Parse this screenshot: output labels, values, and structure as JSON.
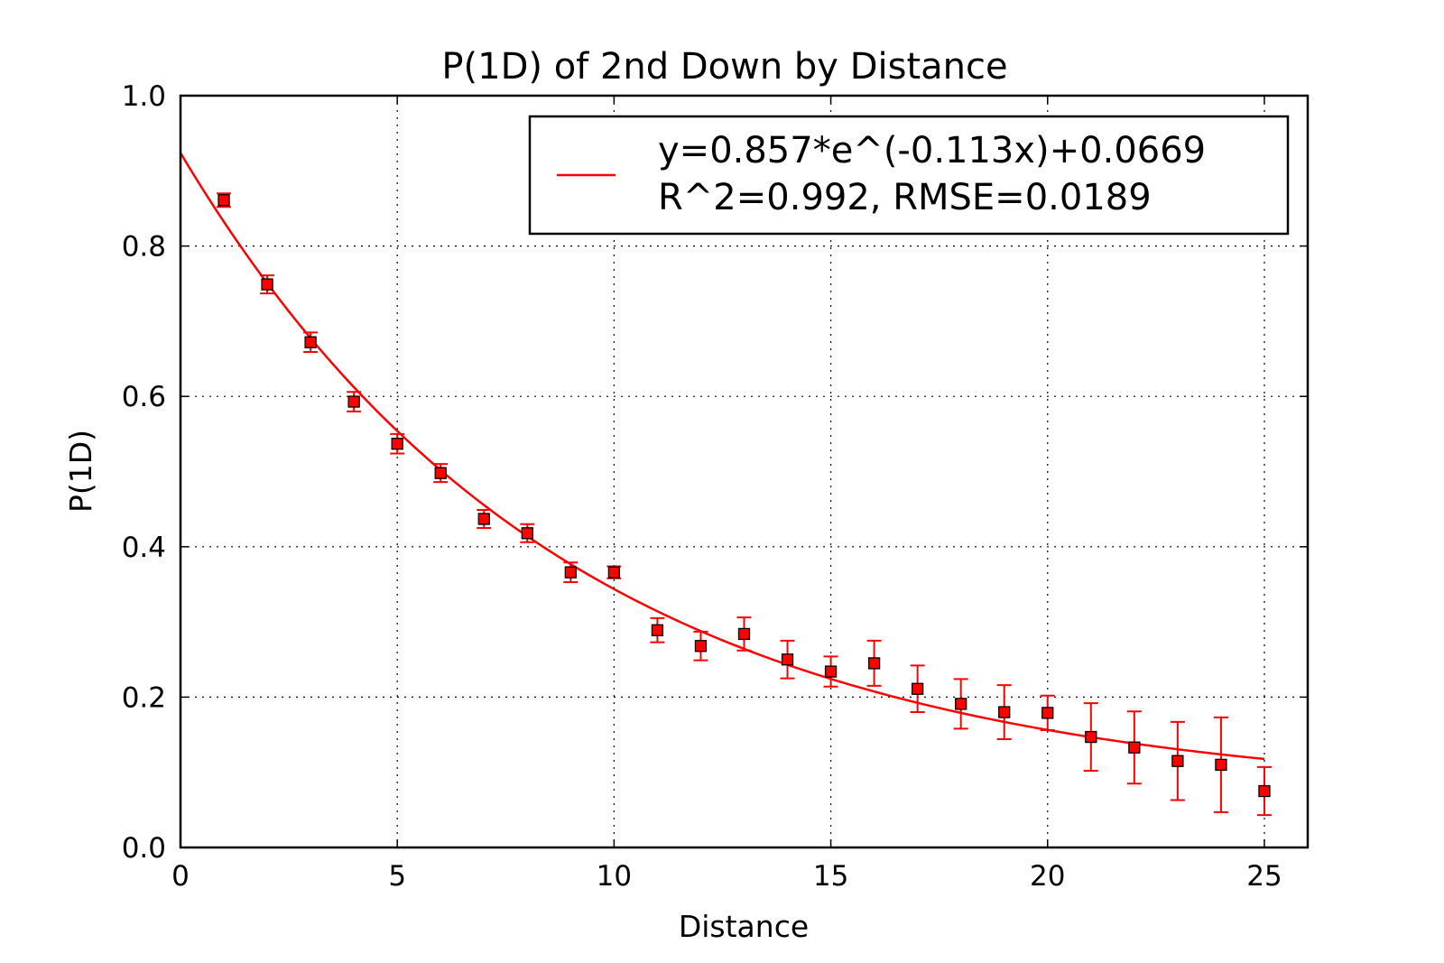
{
  "chart_data": {
    "type": "scatter",
    "title": "P(1D) of 2nd Down by Distance",
    "xlabel": "Distance",
    "ylabel": "P(1D)",
    "xlim": [
      0,
      26
    ],
    "ylim": [
      0.0,
      1.0
    ],
    "xticks": [
      "0",
      "5",
      "10",
      "15",
      "20",
      "25"
    ],
    "yticks": [
      "0.0",
      "0.2",
      "0.4",
      "0.6",
      "0.8",
      "1.0"
    ],
    "grid": true,
    "legend_position": "upper-right",
    "series": [
      {
        "kind": "errorbar",
        "marker": "square",
        "color": "#ff0000",
        "x": [
          1,
          2,
          3,
          4,
          5,
          6,
          7,
          8,
          9,
          10,
          11,
          12,
          13,
          14,
          15,
          16,
          17,
          18,
          19,
          20,
          21,
          22,
          23,
          24,
          25
        ],
        "y": [
          0.861,
          0.749,
          0.672,
          0.593,
          0.537,
          0.498,
          0.437,
          0.418,
          0.366,
          0.366,
          0.289,
          0.268,
          0.284,
          0.25,
          0.234,
          0.245,
          0.211,
          0.191,
          0.18,
          0.179,
          0.147,
          0.133,
          0.115,
          0.11,
          0.075
        ],
        "yerr": [
          0.009,
          0.012,
          0.013,
          0.013,
          0.013,
          0.012,
          0.012,
          0.012,
          0.013,
          0.008,
          0.016,
          0.019,
          0.022,
          0.025,
          0.02,
          0.03,
          0.031,
          0.033,
          0.036,
          0.023,
          0.045,
          0.048,
          0.052,
          0.063,
          0.032
        ]
      },
      {
        "kind": "fit-line",
        "name_line1": "y=0.857*e^(-0.113x)+0.0669",
        "name_line2": "R^2=0.992, RMSE=0.0189",
        "color": "#ff0000",
        "a": 0.857,
        "b": -0.113,
        "c": 0.0669,
        "x_range": [
          0,
          25
        ]
      }
    ]
  }
}
